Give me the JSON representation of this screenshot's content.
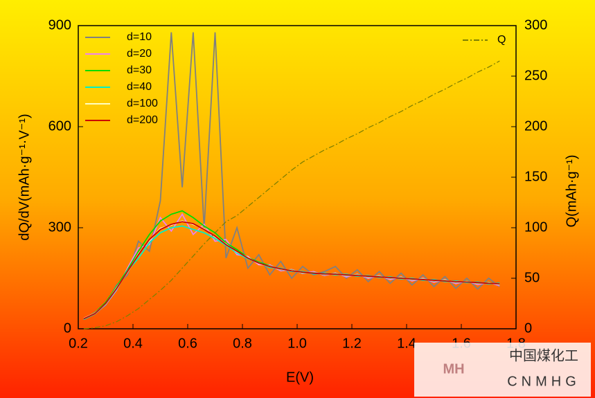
{
  "chart_data": {
    "type": "line",
    "x_label": "E(V)",
    "y_label": "dQ/dV(mAh·g⁻¹·V⁻¹)",
    "y2_label": "Q(mAh·g⁻¹)",
    "x": [
      0.22,
      0.26,
      0.3,
      0.34,
      0.38,
      0.42,
      0.46,
      0.5,
      0.54,
      0.58,
      0.62,
      0.66,
      0.7,
      0.74,
      0.78,
      0.82,
      0.86,
      0.9,
      0.94,
      0.98,
      1.02,
      1.06,
      1.1,
      1.14,
      1.18,
      1.22,
      1.26,
      1.3,
      1.34,
      1.38,
      1.42,
      1.46,
      1.5,
      1.54,
      1.58,
      1.62,
      1.66,
      1.7,
      1.74
    ],
    "xlim": [
      0.2,
      1.8
    ],
    "xticks": [
      0.2,
      0.4,
      0.6,
      0.8,
      {
        "value": 1.0,
        "label": "1.0"
      },
      1.2,
      1.4,
      1.6,
      1.8
    ],
    "ylim": [
      0,
      900
    ],
    "yticks": [
      0,
      300,
      600,
      900
    ],
    "y2lim": [
      0,
      300
    ],
    "y2ticks": [
      0,
      50,
      100,
      150,
      200,
      250,
      300
    ],
    "legend": "top-left",
    "grid": false,
    "series": [
      {
        "name": "d=10",
        "color": "#808080",
        "values": [
          28,
          48,
          70,
          130,
          160,
          260,
          230,
          380,
          880,
          420,
          880,
          300,
          880,
          210,
          300,
          180,
          220,
          160,
          200,
          150,
          185,
          160,
          170,
          185,
          150,
          175,
          140,
          170,
          135,
          165,
          130,
          160,
          125,
          155,
          120,
          150,
          118,
          150,
          125
        ]
      },
      {
        "name": "d=20",
        "color": "#ee82ee",
        "values": [
          30,
          44,
          72,
          115,
          180,
          240,
          250,
          330,
          290,
          340,
          280,
          310,
          260,
          265,
          220,
          215,
          190,
          190,
          172,
          176,
          164,
          170,
          158,
          166,
          154,
          162,
          150,
          158,
          146,
          154,
          142,
          150,
          138,
          146,
          134,
          142,
          131,
          138,
          128
        ]
      },
      {
        "name": "d=30",
        "color": "#00dd00",
        "values": [
          29,
          47,
          78,
          125,
          175,
          230,
          280,
          320,
          340,
          350,
          330,
          305,
          285,
          255,
          235,
          212,
          198,
          187,
          176,
          174,
          166,
          167,
          161,
          164,
          158,
          160,
          154,
          156,
          150,
          152,
          146,
          148,
          142,
          144,
          138,
          141,
          135,
          137,
          132
        ]
      },
      {
        "name": "d=40",
        "color": "#00f0c8",
        "values": [
          28,
          44,
          73,
          118,
          172,
          210,
          255,
          285,
          300,
          305,
          295,
          285,
          268,
          248,
          225,
          208,
          196,
          182,
          180,
          170,
          170,
          163,
          165,
          160,
          162,
          156,
          158,
          152,
          154,
          148,
          150,
          144,
          146,
          140,
          142,
          137,
          139,
          133,
          136
        ]
      },
      {
        "name": "d=100",
        "color": "#ffffc0",
        "values": [
          31,
          46,
          74,
          122,
          168,
          223,
          262,
          298,
          308,
          320,
          310,
          297,
          273,
          252,
          228,
          212,
          193,
          186,
          177,
          173,
          167,
          166,
          162,
          163,
          159,
          159,
          155,
          155,
          151,
          151,
          147,
          147,
          143,
          143,
          139,
          140,
          136,
          136,
          133
        ]
      },
      {
        "name": "d=200",
        "color": "#cc0000",
        "values": [
          30,
          45,
          75,
          120,
          170,
          220,
          265,
          295,
          310,
          318,
          312,
          295,
          275,
          250,
          230,
          210,
          195,
          185,
          178,
          172,
          168,
          165,
          163,
          162,
          160,
          158,
          156,
          154,
          152,
          150,
          148,
          146,
          144,
          142,
          140,
          139,
          137,
          135,
          134
        ]
      },
      {
        "name": "Q",
        "color": "#808000",
        "axis": "y2",
        "dash": "8,3,2,3",
        "values": [
          0,
          1,
          3,
          7,
          13,
          20,
          29,
          38,
          48,
          60,
          72,
          84,
          95,
          106,
          112,
          121,
          130,
          139,
          148,
          157,
          165,
          171,
          177,
          182,
          188,
          193,
          199,
          204,
          210,
          215,
          221,
          226,
          232,
          237,
          243,
          248,
          254,
          259,
          265
        ]
      }
    ]
  },
  "watermark": {
    "logo": "MH",
    "name": "中国煤化工",
    "code": "CNMHG"
  }
}
